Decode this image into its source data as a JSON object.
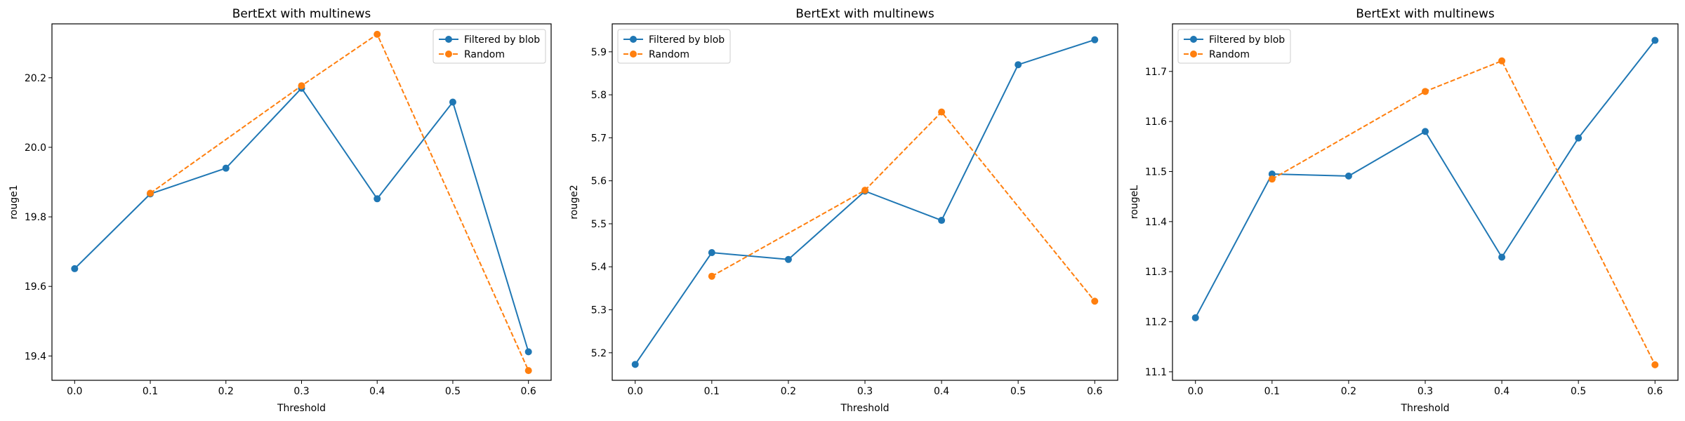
{
  "chart_data": [
    {
      "type": "line",
      "title": "BertExt with multinews",
      "xlabel": "Threshold",
      "ylabel": "rouge1",
      "xlim": [
        -0.03,
        0.63
      ],
      "ylim": [
        19.33,
        20.355
      ],
      "xticks": [
        0.0,
        0.1,
        0.2,
        0.3,
        0.4,
        0.5,
        0.6
      ],
      "xtick_labels": [
        "0.0",
        "0.1",
        "0.2",
        "0.3",
        "0.4",
        "0.5",
        "0.6"
      ],
      "yticks": [
        19.4,
        19.6,
        19.8,
        20.0,
        20.2
      ],
      "ytick_labels": [
        "19.4",
        "19.6",
        "19.8",
        "20.0",
        "20.2"
      ],
      "legend": "top-right",
      "grid": false,
      "series": [
        {
          "name": "Filtered by blob",
          "color": "#1f77b4",
          "style": "solid",
          "x": [
            0.0,
            0.1,
            0.2,
            0.3,
            0.4,
            0.5,
            0.6
          ],
          "y": [
            19.651,
            19.866,
            19.94,
            20.17,
            19.852,
            20.13,
            19.412
          ]
        },
        {
          "name": "Random",
          "color": "#ff7f0e",
          "style": "dashed",
          "x": [
            0.1,
            0.3,
            0.4,
            0.6
          ],
          "y": [
            19.868,
            20.177,
            20.325,
            19.358
          ]
        }
      ]
    },
    {
      "type": "line",
      "title": "BertExt with multinews",
      "xlabel": "Threshold",
      "ylabel": "rouge2",
      "xlim": [
        -0.03,
        0.63
      ],
      "ylim": [
        5.136,
        5.965
      ],
      "xticks": [
        0.0,
        0.1,
        0.2,
        0.3,
        0.4,
        0.5,
        0.6
      ],
      "xtick_labels": [
        "0.0",
        "0.1",
        "0.2",
        "0.3",
        "0.4",
        "0.5",
        "0.6"
      ],
      "yticks": [
        5.2,
        5.3,
        5.4,
        5.5,
        5.6,
        5.7,
        5.8,
        5.9
      ],
      "ytick_labels": [
        "5.2",
        "5.3",
        "5.4",
        "5.5",
        "5.6",
        "5.7",
        "5.8",
        "5.9"
      ],
      "legend": "top-left",
      "grid": false,
      "series": [
        {
          "name": "Filtered by blob",
          "color": "#1f77b4",
          "style": "solid",
          "x": [
            0.0,
            0.1,
            0.2,
            0.3,
            0.4,
            0.5,
            0.6
          ],
          "y": [
            5.173,
            5.433,
            5.417,
            5.576,
            5.508,
            5.87,
            5.928
          ]
        },
        {
          "name": "Random",
          "color": "#ff7f0e",
          "style": "dashed",
          "x": [
            0.1,
            0.3,
            0.4,
            0.6
          ],
          "y": [
            5.378,
            5.578,
            5.76,
            5.32
          ]
        }
      ]
    },
    {
      "type": "line",
      "title": "BertExt with multinews",
      "xlabel": "Threshold",
      "ylabel": "rougeL",
      "xlim": [
        -0.03,
        0.63
      ],
      "ylim": [
        11.083,
        11.795
      ],
      "xticks": [
        0.0,
        0.1,
        0.2,
        0.3,
        0.4,
        0.5,
        0.6
      ],
      "xtick_labels": [
        "0.0",
        "0.1",
        "0.2",
        "0.3",
        "0.4",
        "0.5",
        "0.6"
      ],
      "yticks": [
        11.1,
        11.2,
        11.3,
        11.4,
        11.5,
        11.6,
        11.7
      ],
      "ytick_labels": [
        "11.1",
        "11.2",
        "11.3",
        "11.4",
        "11.5",
        "11.6",
        "11.7"
      ],
      "legend": "top-left",
      "grid": false,
      "series": [
        {
          "name": "Filtered by blob",
          "color": "#1f77b4",
          "style": "solid",
          "x": [
            0.0,
            0.1,
            0.2,
            0.3,
            0.4,
            0.5,
            0.6
          ],
          "y": [
            11.208,
            11.495,
            11.491,
            11.58,
            11.329,
            11.567,
            11.762
          ]
        },
        {
          "name": "Random",
          "color": "#ff7f0e",
          "style": "dashed",
          "x": [
            0.1,
            0.3,
            0.4,
            0.6
          ],
          "y": [
            11.485,
            11.66,
            11.721,
            11.114
          ]
        }
      ]
    }
  ]
}
